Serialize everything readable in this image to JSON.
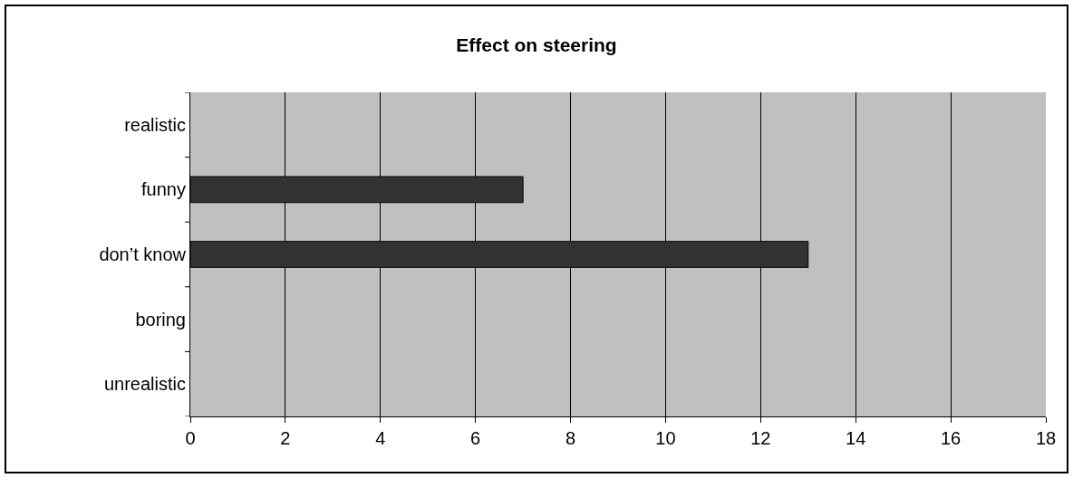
{
  "chart_data": {
    "type": "bar",
    "orientation": "horizontal",
    "title": "Effect on steering",
    "categories": [
      "realistic",
      "funny",
      "don’t know",
      "boring",
      "unrealistic"
    ],
    "values": [
      0,
      7,
      13,
      0,
      0
    ],
    "color": "#333333",
    "xlim": [
      0,
      18
    ],
    "xticks": [
      0,
      2,
      4,
      6,
      8,
      10,
      12,
      14,
      16,
      18
    ],
    "grid": "x"
  }
}
